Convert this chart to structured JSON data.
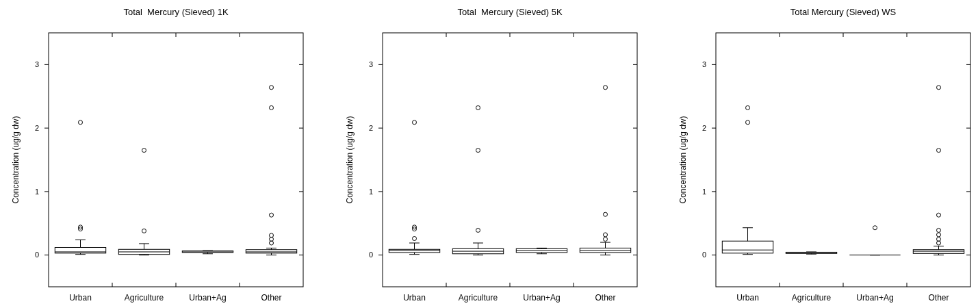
{
  "chart_data": [
    {
      "type": "box",
      "title": "Total  Mercury (Sieved) 1K",
      "ylabel": "Concentration (ug/g dw)",
      "categories": [
        "Urban",
        "Agriculture",
        "Urban+Ag",
        "Other"
      ],
      "ylim": [
        -0.5,
        3.5
      ],
      "yticks": [
        0,
        1,
        2,
        3
      ],
      "boxes": [
        {
          "low": 0.01,
          "q1": 0.03,
          "median": 0.05,
          "q3": 0.12,
          "high": 0.24,
          "outliers": [
            0.41,
            0.44,
            2.09
          ]
        },
        {
          "low": 0,
          "q1": 0.01,
          "median": 0.05,
          "q3": 0.09,
          "high": 0.18,
          "outliers": [
            0.38,
            1.65
          ]
        },
        {
          "low": 0.02,
          "q1": 0.04,
          "median": 0.05,
          "q3": 0.065,
          "high": 0.07
        },
        {
          "low": 0,
          "q1": 0.03,
          "median": 0.05,
          "q3": 0.085,
          "high": 0.11,
          "outliers": [
            0.19,
            0.25,
            0.31,
            0.63,
            2.32,
            2.64
          ]
        }
      ]
    },
    {
      "type": "box",
      "title": "Total  Mercury (Sieved) 5K",
      "ylabel": "Concentration (ug/g dw)",
      "categories": [
        "Urban",
        "Agriculture",
        "Urban+Ag",
        "Other"
      ],
      "ylim": [
        -0.5,
        3.5
      ],
      "yticks": [
        0,
        1,
        2,
        3
      ],
      "boxes": [
        {
          "low": 0.01,
          "q1": 0.04,
          "median": 0.07,
          "q3": 0.09,
          "high": 0.19,
          "outliers": [
            0.26,
            0.41,
            0.44,
            2.09
          ]
        },
        {
          "low": 0,
          "q1": 0.02,
          "median": 0.06,
          "q3": 0.1,
          "high": 0.19,
          "outliers": [
            0.39,
            1.65,
            2.32
          ]
        },
        {
          "low": 0.02,
          "q1": 0.04,
          "median": 0.07,
          "q3": 0.1,
          "high": 0.11
        },
        {
          "low": 0,
          "q1": 0.04,
          "median": 0.07,
          "q3": 0.11,
          "high": 0.2,
          "outliers": [
            0.25,
            0.32,
            0.64,
            2.64
          ]
        }
      ]
    },
    {
      "type": "box",
      "title": "Total Mercury (Sieved) WS",
      "ylabel": "Concentration (ug/g dw)",
      "categories": [
        "Urban",
        "Agriculture",
        "Urban+Ag",
        "Other"
      ],
      "ylim": [
        -0.5,
        3.5
      ],
      "yticks": [
        0,
        1,
        2,
        3
      ],
      "boxes": [
        {
          "low": 0.01,
          "q1": 0.03,
          "median": 0.08,
          "q3": 0.22,
          "high": 0.43,
          "outliers": [
            2.09,
            2.32
          ]
        },
        {
          "low": 0.015,
          "q1": 0.025,
          "median": 0.04,
          "q3": 0.045,
          "high": 0.05
        },
        {
          "low": 0,
          "q1": 0,
          "median": 0,
          "q3": 0,
          "high": 0,
          "outliers": [
            0.43
          ]
        },
        {
          "low": 0,
          "q1": 0.025,
          "median": 0.06,
          "q3": 0.085,
          "high": 0.14,
          "outliers": [
            0.19,
            0.25,
            0.32,
            0.39,
            0.63,
            1.65,
            2.64
          ]
        }
      ]
    }
  ]
}
